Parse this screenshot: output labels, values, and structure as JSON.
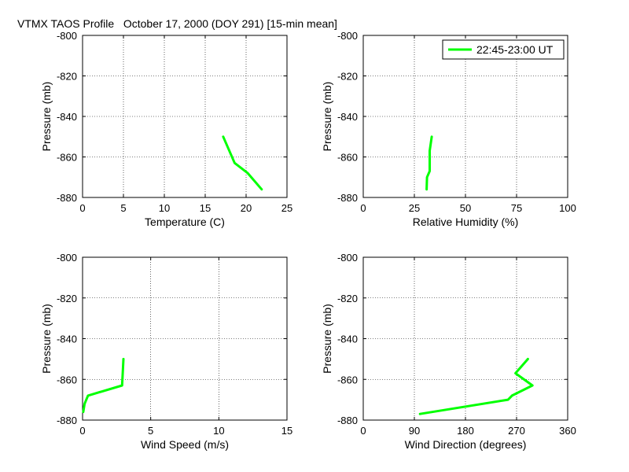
{
  "figure_title": "VTMX TAOS Profile   October 17, 2000 (DOY 291) [15-min mean]",
  "legend": {
    "label": "22:45-23:00 UT",
    "color": "#00ff00",
    "placement": "top-right of upper-right panel"
  },
  "line_color": "#00ff00",
  "chart_data": [
    {
      "type": "line",
      "xlabel": "Temperature (C)",
      "ylabel": "Pressure (mb)",
      "xlim": [
        0,
        25
      ],
      "ylim": [
        -880,
        -800
      ],
      "xticks": [
        0,
        5,
        10,
        15,
        20,
        25
      ],
      "xtick_labels": [
        "0",
        "5",
        "10",
        "15",
        "20",
        "25"
      ],
      "yticks": [
        -800,
        -820,
        -840,
        -860,
        -880
      ],
      "ytick_labels": [
        "-800",
        "-820",
        "-840",
        "-860",
        "-880"
      ],
      "grid": true,
      "series": [
        {
          "x": [
            17.2,
            18.6,
            20.2,
            21.9
          ],
          "y": [
            -850,
            -863,
            -868,
            -876
          ]
        }
      ]
    },
    {
      "type": "line",
      "xlabel": "Relative Humidity (%)",
      "ylabel": "Pressure (mb)",
      "xlim": [
        0,
        100
      ],
      "ylim": [
        -880,
        -800
      ],
      "xticks": [
        0,
        25,
        50,
        75,
        100
      ],
      "xtick_labels": [
        "0",
        "25",
        "50",
        "75",
        "100"
      ],
      "yticks": [
        -800,
        -820,
        -840,
        -860,
        -880
      ],
      "ytick_labels": [
        "-800",
        "-820",
        "-840",
        "-860",
        "-880"
      ],
      "grid": true,
      "series": [
        {
          "x": [
            33.5,
            32.5,
            32.5,
            31.2,
            31.0
          ],
          "y": [
            -850,
            -857,
            -867,
            -870,
            -876
          ]
        }
      ]
    },
    {
      "type": "line",
      "xlabel": "Wind Speed (m/s)",
      "ylabel": "Pressure (mb)",
      "xlim": [
        0,
        15
      ],
      "ylim": [
        -880,
        -800
      ],
      "xticks": [
        0,
        5,
        10,
        15
      ],
      "xtick_labels": [
        "0",
        "5",
        "10",
        "15"
      ],
      "yticks": [
        -800,
        -820,
        -840,
        -860,
        -880
      ],
      "ytick_labels": [
        "-800",
        "-820",
        "-840",
        "-860",
        "-880"
      ],
      "grid": true,
      "series": [
        {
          "x": [
            3.0,
            2.9,
            0.4,
            0.15,
            0.05
          ],
          "y": [
            -850,
            -863,
            -868,
            -872,
            -876
          ]
        }
      ]
    },
    {
      "type": "line",
      "xlabel": "Wind Direction (degrees)",
      "ylabel": "Pressure (mb)",
      "xlim": [
        0,
        360
      ],
      "ylim": [
        -880,
        -800
      ],
      "xticks": [
        0,
        90,
        180,
        270,
        360
      ],
      "xtick_labels": [
        "0",
        "90",
        "180",
        "270",
        "360"
      ],
      "yticks": [
        -800,
        -820,
        -840,
        -860,
        -880
      ],
      "ytick_labels": [
        "-800",
        "-820",
        "-840",
        "-860",
        "-880"
      ],
      "grid": true,
      "series": [
        {
          "x": [
            290,
            268,
            298,
            262,
            255,
            100
          ],
          "y": [
            -850,
            -857,
            -863,
            -868,
            -870,
            -877
          ]
        }
      ]
    }
  ]
}
